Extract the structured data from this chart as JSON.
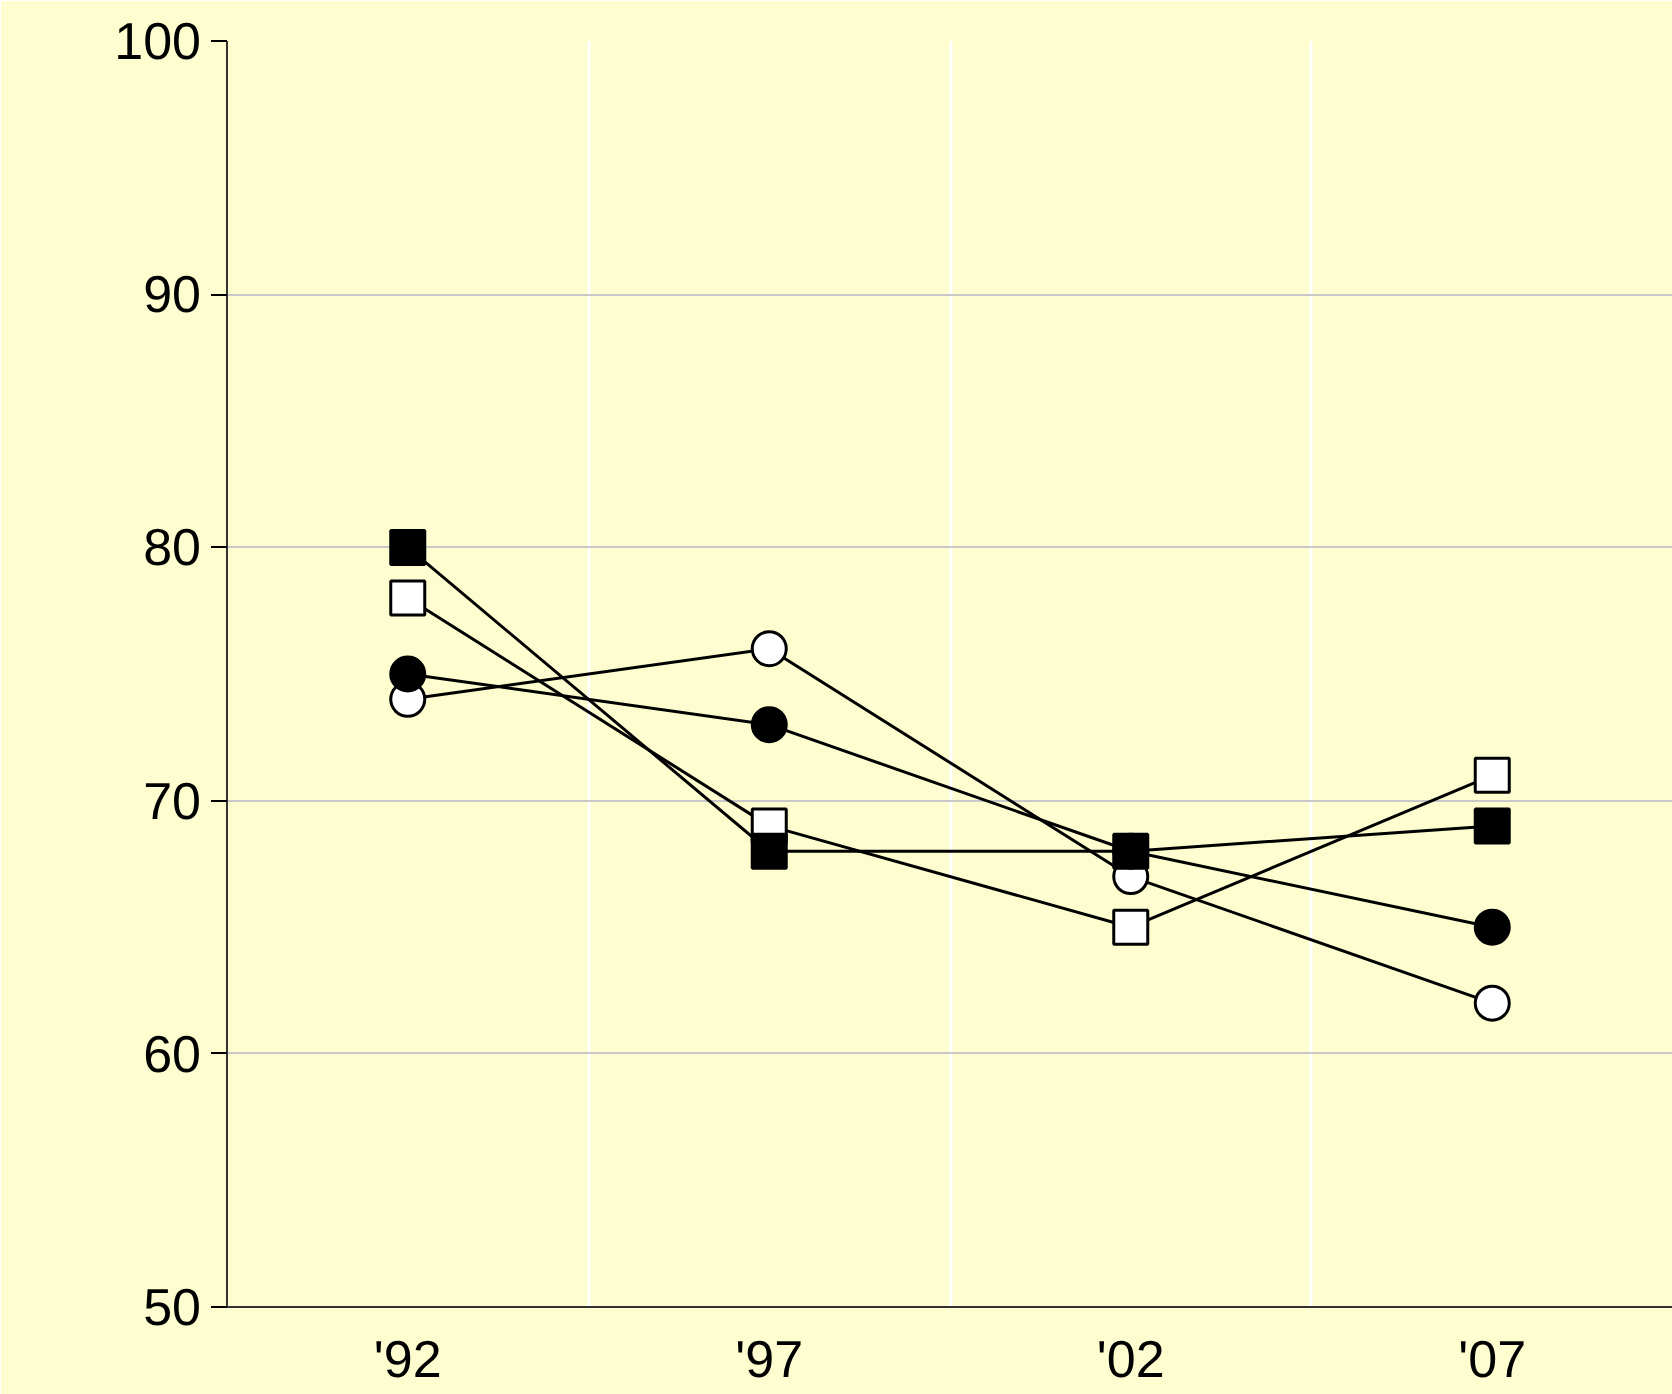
{
  "chart_data": {
    "type": "line",
    "categories": [
      "'92",
      "'97",
      "'02",
      "'07"
    ],
    "ylim": [
      50,
      100
    ],
    "yticks": [
      50,
      60,
      70,
      80,
      90,
      100
    ],
    "grid": true,
    "series": [
      {
        "color": "#000000",
        "marker": "square",
        "values": [
          80,
          68,
          68,
          69
        ]
      },
      {
        "color": "#ffffff",
        "marker": "square",
        "values": [
          78,
          69,
          65,
          71
        ]
      },
      {
        "color": "#000000",
        "marker": "circle",
        "values": [
          75,
          73,
          68,
          65
        ]
      },
      {
        "color": "#ffffff",
        "marker": "circle",
        "values": [
          74,
          76,
          67,
          62
        ]
      }
    ]
  }
}
